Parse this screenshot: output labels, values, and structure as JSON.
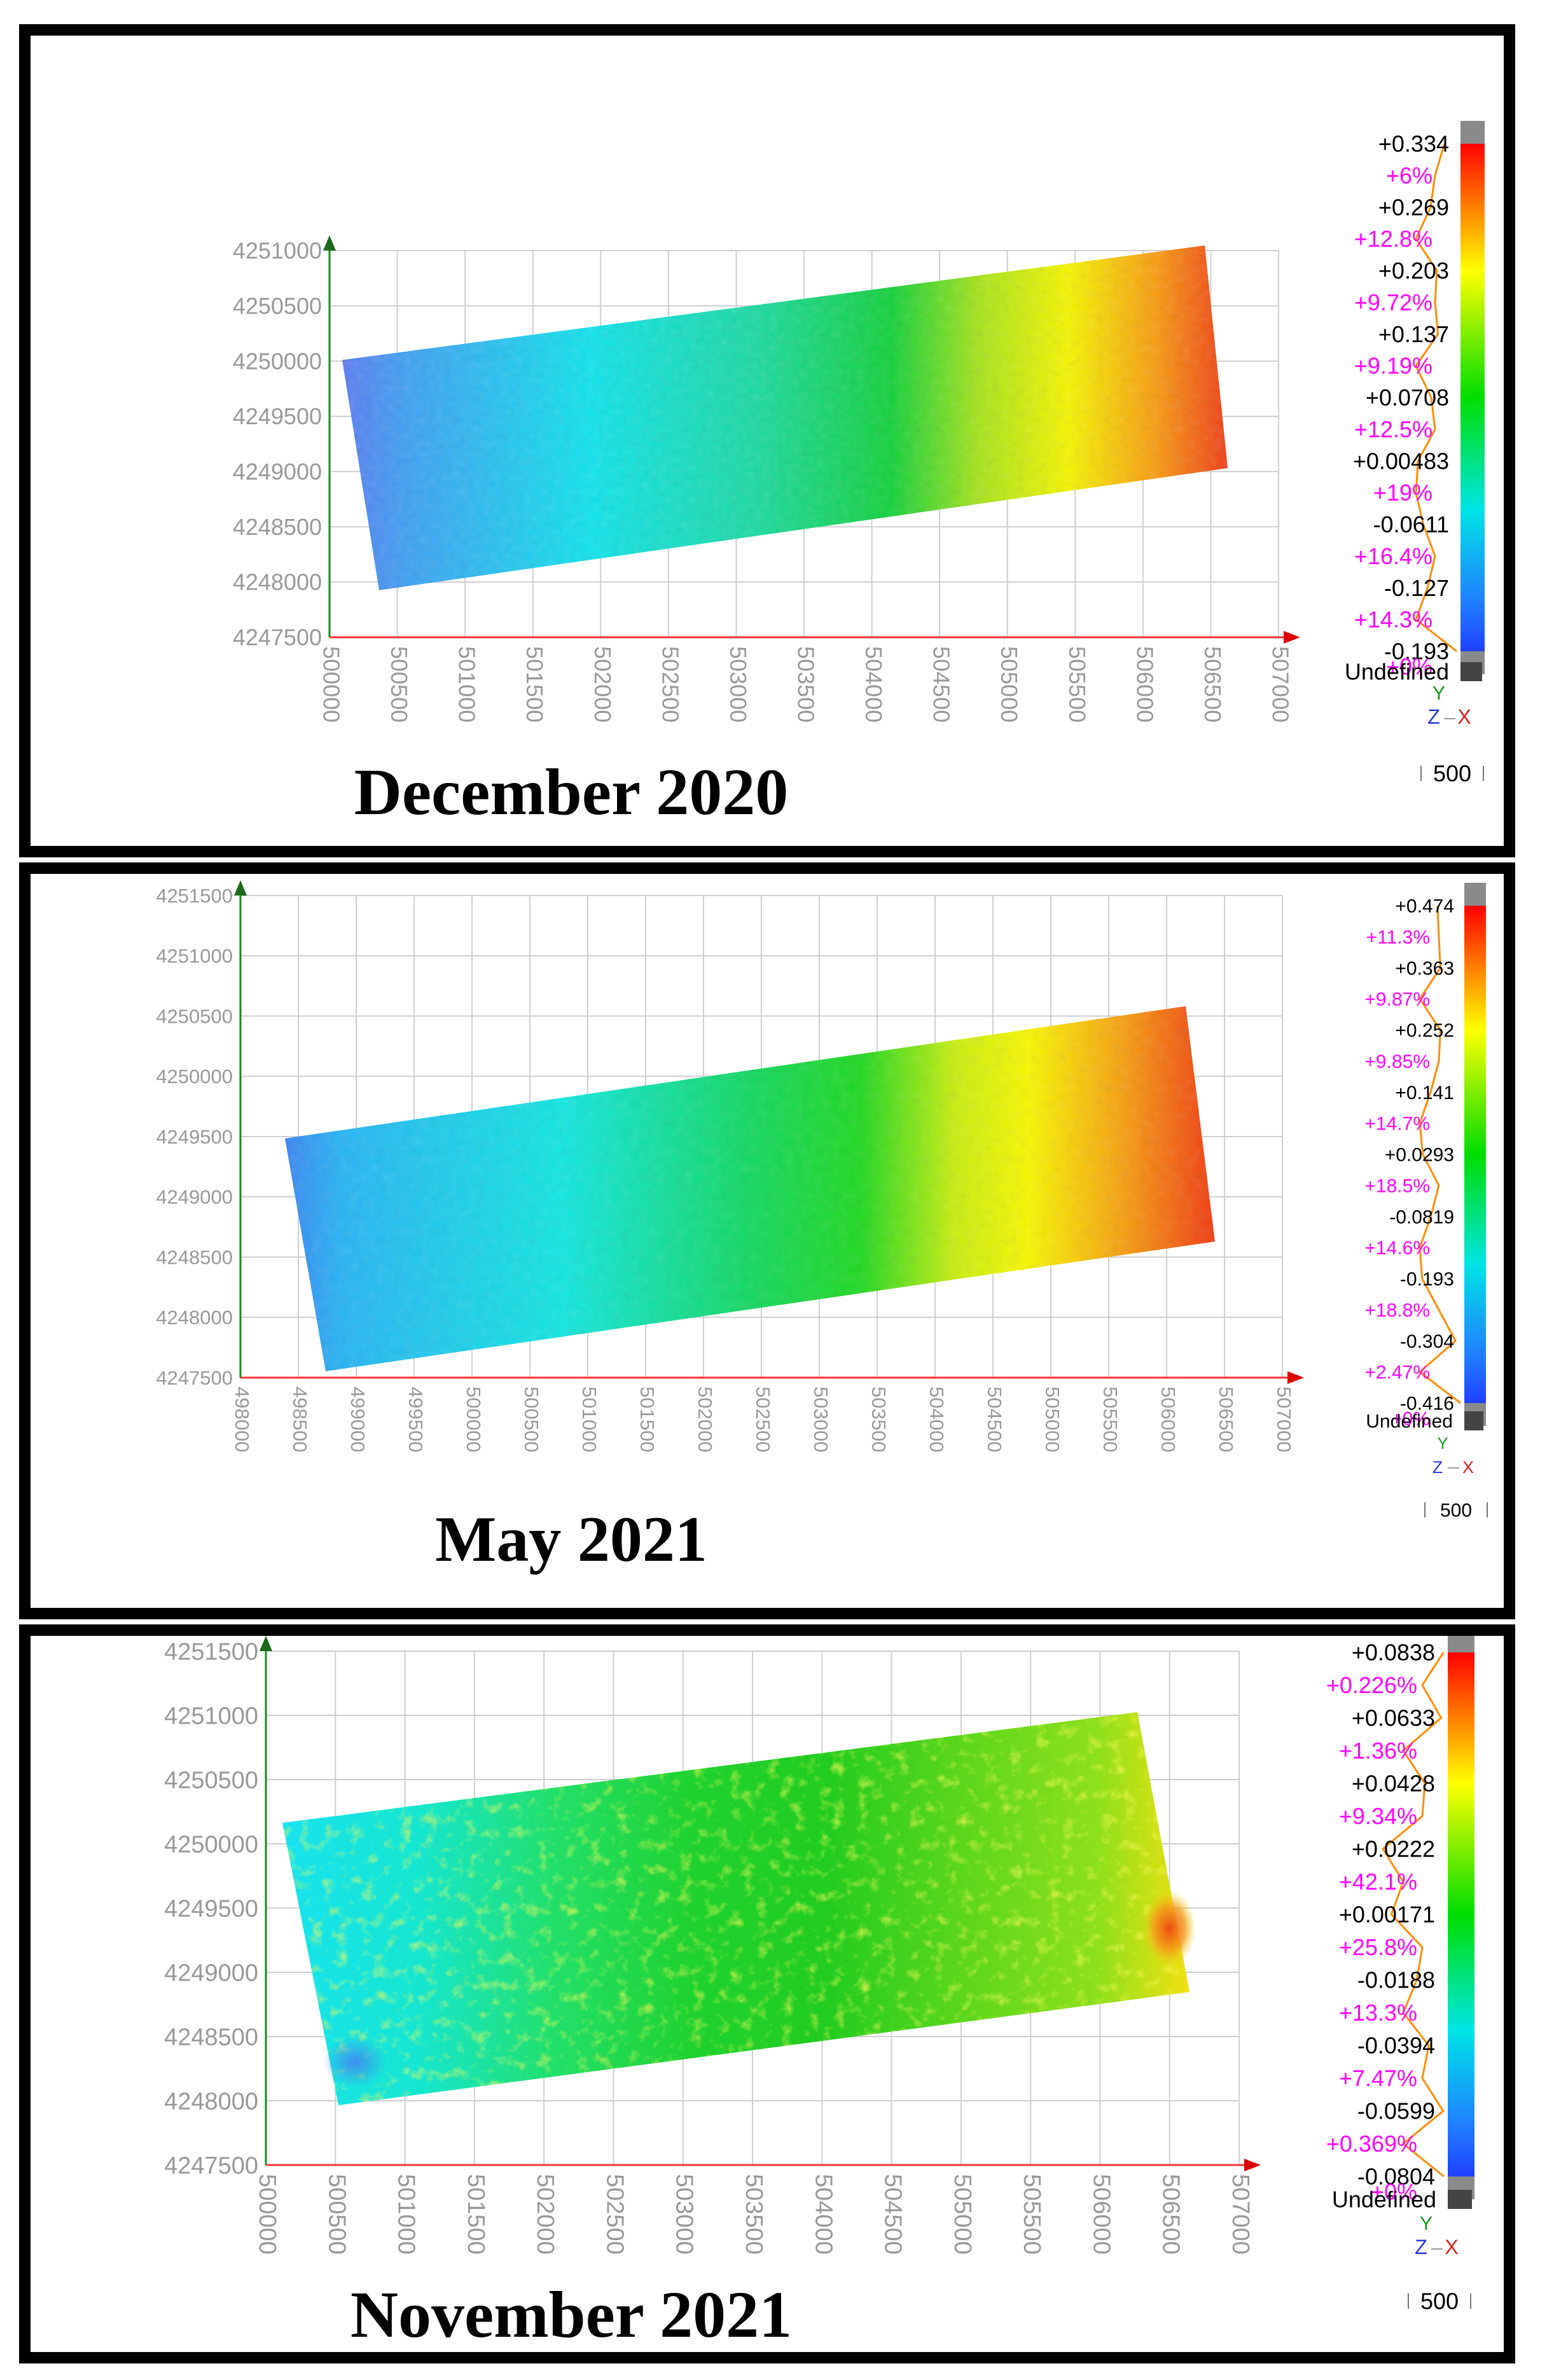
{
  "panels": [
    {
      "title": "December 2020",
      "x_ticks": [
        "500000",
        "500500",
        "501000",
        "501500",
        "502000",
        "502500",
        "503000",
        "503500",
        "504000",
        "504500",
        "505000",
        "505500",
        "506000",
        "506500",
        "507000"
      ],
      "y_ticks": [
        "4251000",
        "4250500",
        "4250000",
        "4249500",
        "4249000",
        "4248500",
        "4248000",
        "4247500"
      ],
      "legend": {
        "values": [
          "+0.334",
          "+0.269",
          "+0.203",
          "+0.137",
          "+0.0708",
          "+0.00483",
          "-0.0611",
          "-0.127",
          "-0.193"
        ],
        "percents": [
          "+6%",
          "+12.8%",
          "+9.72%",
          "+9.19%",
          "+12.5%",
          "+19%",
          "+16.4%",
          "+14.3%",
          "+0%"
        ],
        "undefined_label": "Undefined",
        "scale_label": "500"
      },
      "colormap": "rainbow: blue (low) → cyan → green → yellow → red (high); mostly cyan/blue in the west, yellow/red in the east"
    },
    {
      "title": "May 2021",
      "x_ticks": [
        "498000",
        "498500",
        "499000",
        "499500",
        "500000",
        "500500",
        "501000",
        "501500",
        "502000",
        "502500",
        "503000",
        "503500",
        "504000",
        "504500",
        "505000",
        "505500",
        "506000",
        "506500",
        "507000"
      ],
      "y_ticks": [
        "4251500",
        "4251000",
        "4250500",
        "4250000",
        "4249500",
        "4249000",
        "4248500",
        "4248000",
        "4247500"
      ],
      "legend": {
        "values": [
          "+0.474",
          "+0.363",
          "+0.252",
          "+0.141",
          "+0.0293",
          "-0.0819",
          "-0.193",
          "-0.304",
          "-0.416"
        ],
        "percents": [
          "+11.3%",
          "+9.87%",
          "+9.85%",
          "+14.7%",
          "+18.5%",
          "+14.6%",
          "+18.8%",
          "+2.47%",
          "+0%"
        ],
        "undefined_label": "Undefined",
        "scale_label": "500"
      },
      "colormap": "rainbow: cyan/blue in the west grading to green, yellow and red in the east"
    },
    {
      "title": "November 2021",
      "x_ticks": [
        "500000",
        "500500",
        "501000",
        "501500",
        "502000",
        "502500",
        "503000",
        "503500",
        "504000",
        "504500",
        "505000",
        "505500",
        "506000",
        "506500",
        "507000"
      ],
      "y_ticks": [
        "4251500",
        "4251000",
        "4250500",
        "4250000",
        "4249500",
        "4249000",
        "4248500",
        "4248000",
        "4247500"
      ],
      "legend": {
        "values": [
          "+0.0838",
          "+0.0633",
          "+0.0428",
          "+0.0222",
          "+0.00171",
          "-0.0188",
          "-0.0394",
          "-0.0599",
          "-0.0804"
        ],
        "percents": [
          "+0.226%",
          "+1.36%",
          "+9.34%",
          "+42.1%",
          "+25.8%",
          "+13.3%",
          "+7.47%",
          "+0.369%",
          "+0%"
        ],
        "undefined_label": "Undefined",
        "scale_label": "500"
      },
      "colormap": "mostly green with cyan in the west and speckled yellow, small red patch at the east edge"
    }
  ],
  "axis_letters": {
    "y": "Y",
    "z": "Z",
    "x": "X"
  },
  "colors": {
    "axis_x": "#ff3333",
    "axis_y": "#1a8a1a",
    "legend_percent": "#ff00ff",
    "legend_value": "#000000",
    "grid": "#cfcfcf",
    "curve": "#ff8c00"
  }
}
